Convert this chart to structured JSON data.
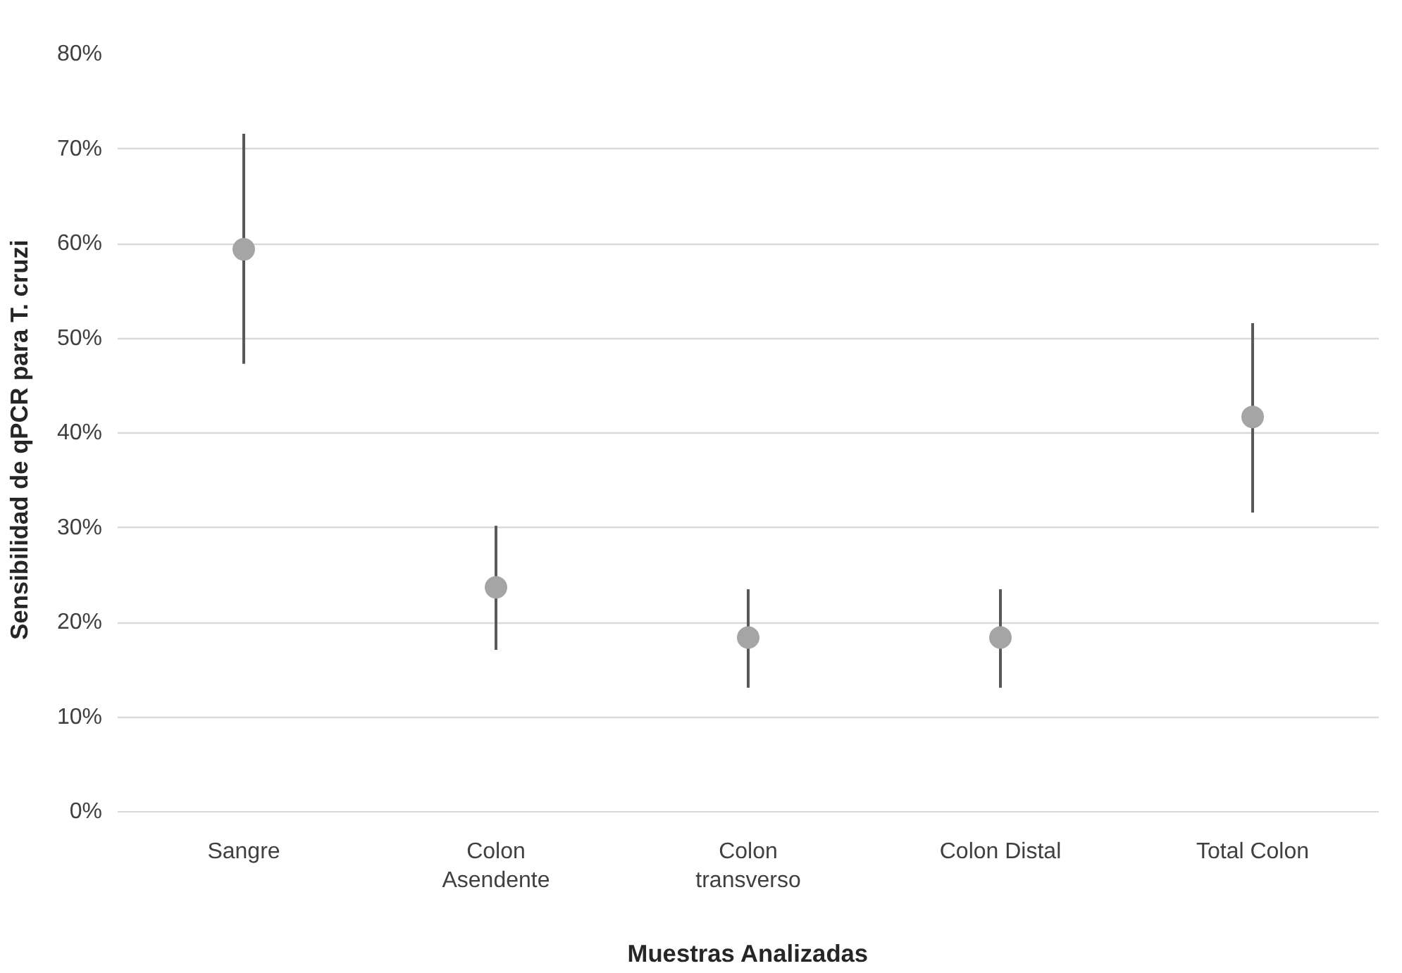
{
  "chart_data": {
    "type": "scatter",
    "xlabel": "Muestras Analizadas",
    "ylabel": "Sensibilidad de  qPCR para  T. cruzi",
    "categories": [
      "Sangre",
      "Colon\nAsendente",
      "Colon\ntransverso",
      "Colon Distal",
      "Total Colon"
    ],
    "series": [
      {
        "color": "#a5a5a5",
        "values": [
          59.4,
          23.7,
          18.4,
          18.4,
          41.7
        ],
        "errors": [
          [
            47.3,
            71.6
          ],
          [
            17.1,
            30.2
          ],
          [
            13.1,
            23.5
          ],
          [
            13.1,
            23.5
          ],
          [
            31.6,
            51.6
          ]
        ]
      }
    ],
    "ylim": [
      0,
      80
    ],
    "yticks": [
      {
        "value": 0,
        "label": "0%"
      },
      {
        "value": 10,
        "label": "10%"
      },
      {
        "value": 20,
        "label": "20%"
      },
      {
        "value": 30,
        "label": "30%"
      },
      {
        "value": 40,
        "label": "40%"
      },
      {
        "value": 50,
        "label": "50%"
      },
      {
        "value": 60,
        "label": "60%"
      },
      {
        "value": 70,
        "label": "70%"
      },
      {
        "value": 80,
        "label": "80%"
      }
    ],
    "grid": "y",
    "marker": "circle"
  }
}
